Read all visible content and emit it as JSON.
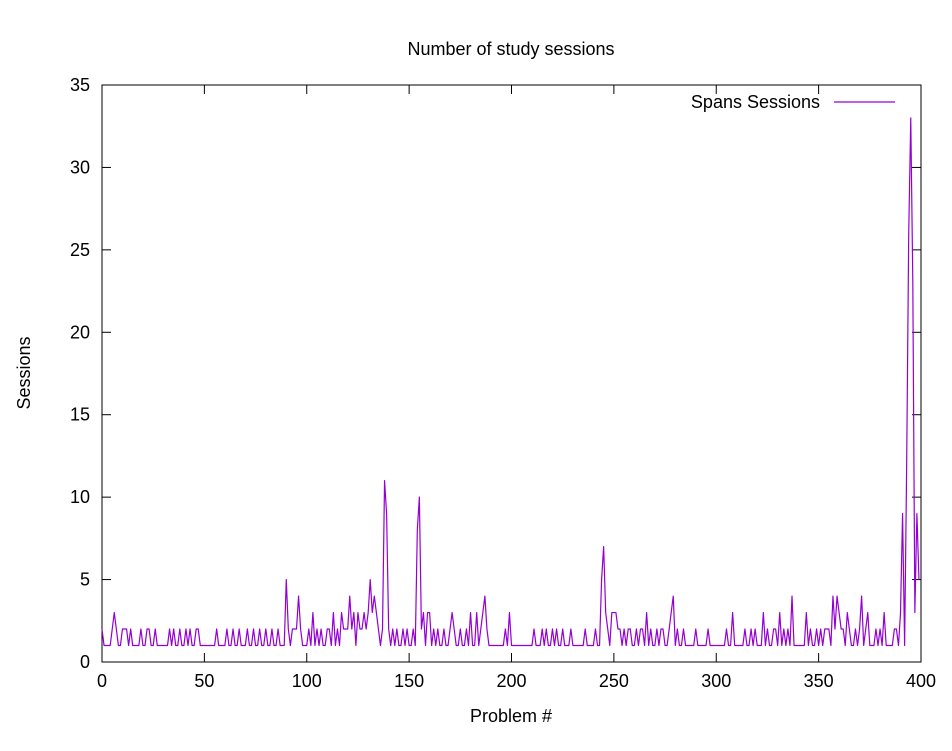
{
  "chart_data": {
    "type": "line",
    "title": "Number of study sessions",
    "xlabel": "Problem #",
    "ylabel": "Sessions",
    "xlim": [
      0,
      400
    ],
    "ylim": [
      0,
      35
    ],
    "xticks": [
      0,
      50,
      100,
      150,
      200,
      250,
      300,
      350,
      400
    ],
    "yticks": [
      0,
      5,
      10,
      15,
      20,
      25,
      30,
      35
    ],
    "grid": false,
    "legend_position": "top-right",
    "colors": {
      "series": "#9400d3",
      "axis": "#000000"
    },
    "series": [
      {
        "name": "Spans Sessions",
        "x_start": 0,
        "x_step": 1,
        "values": [
          2,
          1,
          1,
          1,
          1,
          2,
          3,
          2,
          1,
          1,
          2,
          2,
          2,
          1,
          2,
          1,
          1,
          1,
          1,
          2,
          1,
          1,
          2,
          2,
          1,
          1,
          2,
          1,
          1,
          1,
          1,
          1,
          1,
          2,
          1,
          2,
          1,
          1,
          2,
          1,
          1,
          2,
          1,
          2,
          1,
          1,
          2,
          2,
          1,
          1,
          1,
          1,
          1,
          1,
          1,
          1,
          2,
          1,
          1,
          1,
          1,
          2,
          1,
          1,
          2,
          1,
          1,
          2,
          1,
          1,
          1,
          2,
          1,
          1,
          2,
          1,
          1,
          2,
          1,
          1,
          2,
          1,
          1,
          2,
          1,
          1,
          2,
          1,
          1,
          1,
          5,
          2,
          1,
          2,
          2,
          2,
          4,
          2,
          1,
          1,
          1,
          2,
          1,
          3,
          1,
          2,
          1,
          2,
          1,
          1,
          2,
          2,
          1,
          3,
          1,
          2,
          1,
          3,
          2,
          2,
          2,
          4,
          2,
          3,
          1,
          3,
          2,
          2,
          3,
          2,
          3,
          5,
          3,
          4,
          3,
          2,
          1,
          2,
          11,
          9,
          2,
          1,
          2,
          1,
          2,
          1,
          1,
          2,
          1,
          2,
          1,
          1,
          2,
          1,
          8,
          10,
          2,
          3,
          1,
          3,
          3,
          1,
          2,
          1,
          2,
          1,
          1,
          2,
          1,
          1,
          2,
          3,
          2,
          1,
          1,
          2,
          1,
          1,
          2,
          1,
          3,
          1,
          1,
          3,
          1,
          2,
          3,
          4,
          2,
          1,
          1,
          1,
          1,
          1,
          1,
          1,
          1,
          2,
          1,
          3,
          1,
          1,
          1,
          1,
          1,
          1,
          1,
          1,
          1,
          1,
          1,
          2,
          1,
          1,
          1,
          2,
          1,
          2,
          1,
          1,
          2,
          1,
          2,
          1,
          1,
          2,
          1,
          1,
          1,
          2,
          1,
          1,
          1,
          1,
          1,
          1,
          2,
          1,
          1,
          1,
          1,
          2,
          1,
          1,
          5,
          7,
          3,
          2,
          1,
          3,
          3,
          3,
          2,
          2,
          1,
          2,
          1,
          2,
          2,
          1,
          1,
          2,
          1,
          2,
          2,
          1,
          3,
          1,
          2,
          1,
          1,
          2,
          1,
          2,
          2,
          1,
          1,
          2,
          3,
          4,
          1,
          2,
          1,
          1,
          2,
          1,
          1,
          1,
          1,
          1,
          2,
          1,
          1,
          1,
          1,
          1,
          2,
          1,
          1,
          1,
          1,
          1,
          1,
          1,
          1,
          2,
          1,
          1,
          3,
          1,
          1,
          1,
          1,
          1,
          2,
          1,
          1,
          2,
          1,
          2,
          1,
          1,
          1,
          3,
          1,
          2,
          1,
          1,
          2,
          2,
          1,
          3,
          1,
          2,
          1,
          2,
          1,
          4,
          1,
          1,
          1,
          1,
          1,
          1,
          3,
          1,
          2,
          1,
          1,
          2,
          1,
          2,
          1,
          2,
          2,
          2,
          1,
          4,
          2,
          4,
          3,
          2,
          2,
          1,
          3,
          2,
          1,
          1,
          2,
          1,
          2,
          4,
          1,
          2,
          3,
          1,
          1,
          1,
          2,
          1,
          2,
          1,
          3,
          1,
          1,
          1,
          1,
          2,
          2,
          1,
          3,
          9,
          1,
          12,
          26,
          33,
          23,
          3,
          9,
          5
        ]
      }
    ]
  }
}
